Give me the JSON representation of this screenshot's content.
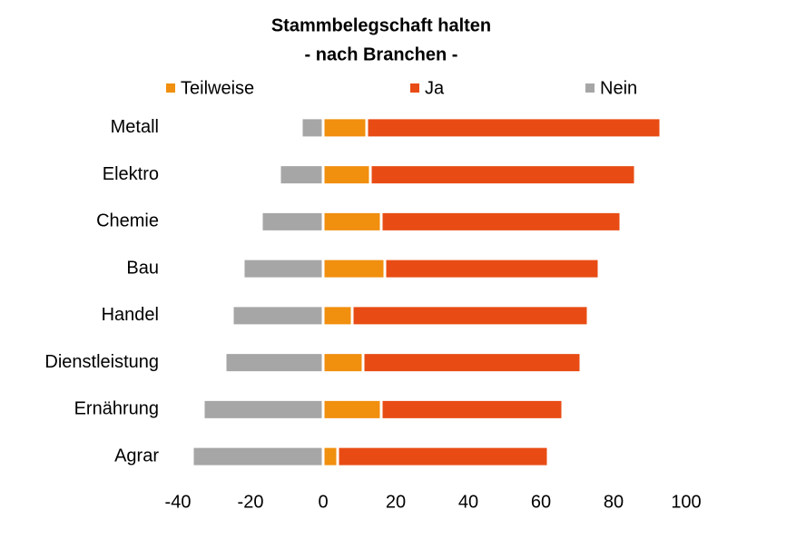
{
  "chart_data": {
    "type": "bar",
    "orientation": "horizontal",
    "stacked": true,
    "title": "Stammbelegschaft halten",
    "subtitle": "- nach Branchen -",
    "categories": [
      "Metall",
      "Elektro",
      "Chemie",
      "Bau",
      "Handel",
      "Dienstleistung",
      "Ernährung",
      "Agrar"
    ],
    "series": [
      {
        "name": "Teilweise",
        "color": "#f18f0f",
        "values": [
          12,
          13,
          16,
          17,
          8,
          11,
          16,
          4
        ]
      },
      {
        "name": "Ja",
        "color": "#e84c14",
        "values": [
          81,
          73,
          66,
          59,
          65,
          60,
          50,
          58
        ]
      },
      {
        "name": "Nein",
        "color": "#a6a6a6",
        "values": [
          -6,
          -12,
          -17,
          -22,
          -25,
          -27,
          -33,
          -36
        ]
      }
    ],
    "xlim": [
      -40,
      100
    ],
    "xticks": [
      -40,
      -20,
      0,
      20,
      40,
      60,
      80,
      100
    ],
    "grid": false,
    "legend": "top"
  }
}
